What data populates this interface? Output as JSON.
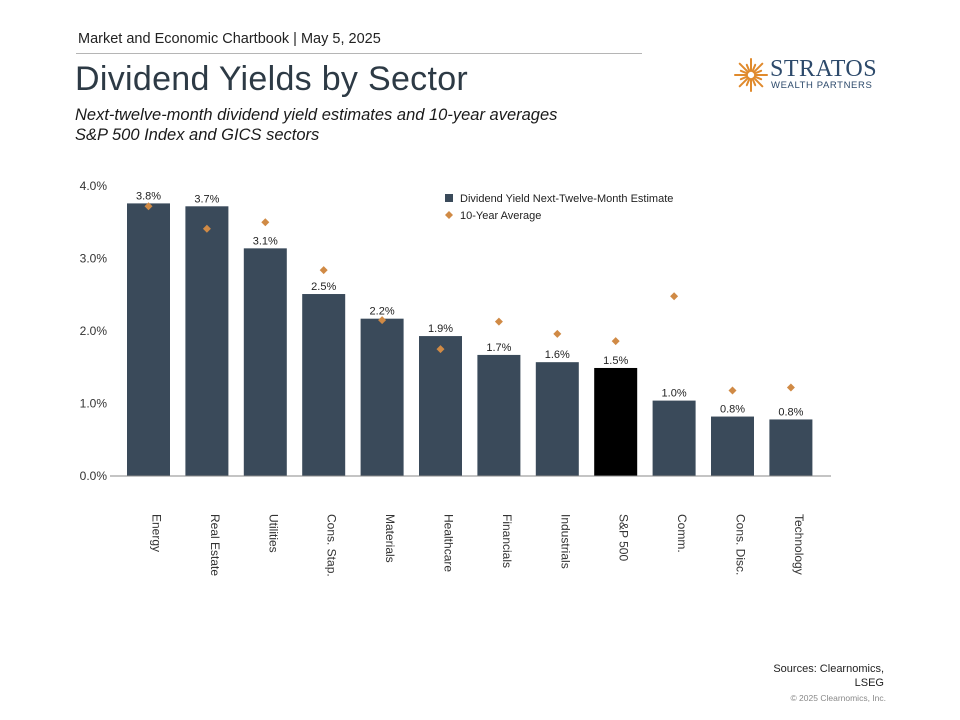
{
  "header": {
    "chartbook": "Market and Economic Chartbook | May 5, 2025",
    "title": "Dividend Yields by Sector",
    "subtitle_1": "Next-twelve-month dividend yield estimates and 10-year averages",
    "subtitle_2": "S&P 500 Index and GICS sectors"
  },
  "logo": {
    "name": "STRATOS",
    "tagline": "WEALTH PARTNERS",
    "icon": "sunburst-icon",
    "color": "#e08a2c"
  },
  "colors": {
    "bar": "#3a4a5a",
    "highlight_bar": "#000000",
    "marker": "#d08a45",
    "axis": "#888888"
  },
  "chart_data": {
    "type": "bar",
    "categories": [
      "Energy",
      "Real Estate",
      "Utilities",
      "Cons. Stap.",
      "Materials",
      "Healthcare",
      "Financials",
      "Industrials",
      "S&P 500",
      "Comm.",
      "Cons. Disc.",
      "Technology"
    ],
    "series": [
      {
        "name": "Dividend Yield Next-Twelve-Month Estimate",
        "type": "bar",
        "values": [
          3.76,
          3.72,
          3.14,
          2.51,
          2.17,
          1.93,
          1.67,
          1.57,
          1.49,
          1.04,
          0.82,
          0.78
        ],
        "labels": [
          "3.8%",
          "3.7%",
          "3.1%",
          "2.5%",
          "2.2%",
          "1.9%",
          "1.7%",
          "1.6%",
          "1.5%",
          "1.0%",
          "0.8%",
          "0.8%"
        ]
      },
      {
        "name": "10-Year Average",
        "type": "scatter",
        "values": [
          3.72,
          3.41,
          3.5,
          2.84,
          2.15,
          1.75,
          2.13,
          1.96,
          1.86,
          2.48,
          1.18,
          1.22
        ]
      }
    ],
    "highlight_category": "S&P 500",
    "yticks": [
      "0.0%",
      "1.0%",
      "2.0%",
      "3.0%",
      "4.0%"
    ],
    "ylim": [
      0,
      4
    ],
    "legend_position": "top-right",
    "grid": false
  },
  "footer": {
    "sources_line1": "Sources: Clearnomics,",
    "sources_line2": "LSEG",
    "copyright": "© 2025 Clearnomics, Inc."
  }
}
